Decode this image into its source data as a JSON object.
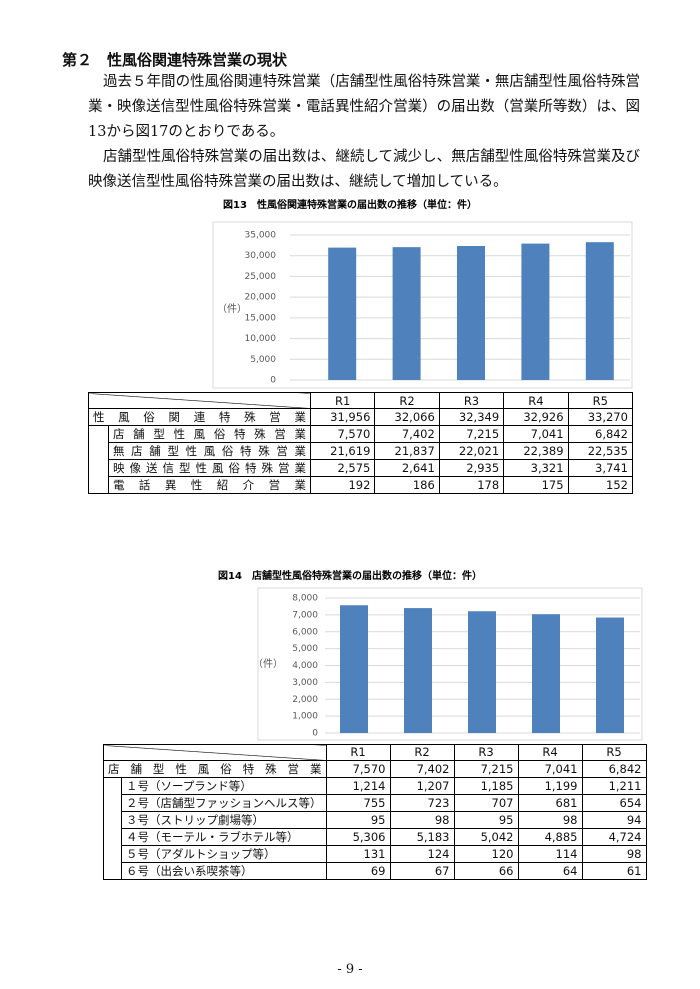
{
  "heading": "第２　性風俗関連特殊営業の現状",
  "paragraphs": [
    [
      "過去５年間の性風俗関連特殊営業（店舗型性風俗特殊営業・無店舗型性風俗特殊営",
      "業・映像送信型性風俗特殊営業・電話異性紹介営業）の届出数（営業所等数）は、図",
      "13から図17のとおりである。"
    ],
    [
      "店舗型性風俗特殊営業の届出数は、継続して減少し、無店舗型性風俗特殊営業及び",
      "映像送信型性風俗特殊営業の届出数は、継続して増加している。"
    ]
  ],
  "chart_data": [
    {
      "type": "bar",
      "title": "図13　性風俗関連特殊営業の届出数の推移（単位：件）",
      "y_label": "（件）",
      "categories": [
        "R1",
        "R2",
        "R3",
        "R4",
        "R5"
      ],
      "values": [
        31956,
        32066,
        32349,
        32926,
        33270
      ],
      "color": "#4f81bd",
      "ylim": [
        0,
        35000
      ],
      "grid": true,
      "yticks": [
        0,
        {
          "value": 5000,
          "label": "5,000"
        },
        {
          "value": 10000,
          "label": "10,000"
        },
        {
          "value": 15000,
          "label": "15,000"
        },
        {
          "value": 20000,
          "label": "20,000"
        },
        {
          "value": 25000,
          "label": "25,000"
        },
        {
          "value": 30000,
          "label": "30,000"
        },
        {
          "value": 35000,
          "label": "35,000"
        }
      ]
    },
    {
      "type": "bar",
      "title": "図14　店舗型性風俗特殊営業の届出数の推移（単位：件）",
      "y_label": "（件）",
      "categories": [
        "R1",
        "R2",
        "R3",
        "R4",
        "R5"
      ],
      "values": [
        7570,
        7402,
        7215,
        7041,
        6842
      ],
      "color": "#4f81bd",
      "ylim": [
        0,
        8000
      ],
      "grid": true,
      "yticks": [
        0,
        {
          "value": 1000,
          "label": "1,000"
        },
        {
          "value": 2000,
          "label": "2,000"
        },
        {
          "value": 3000,
          "label": "3,000"
        },
        {
          "value": 4000,
          "label": "4,000"
        },
        {
          "value": 5000,
          "label": "5,000"
        },
        {
          "value": 6000,
          "label": "6,000"
        },
        {
          "value": 7000,
          "label": "7,000"
        },
        {
          "value": 8000,
          "label": "8,000"
        }
      ]
    }
  ],
  "tables": [
    {
      "rows": [
        {
          "label": "性風俗関連特殊営業",
          "cells": [
            "31,956",
            "32,066",
            "32,349",
            "32,926",
            "33,270"
          ]
        },
        {
          "label": "店舗型性風俗特殊営業",
          "cells": [
            "7,570",
            "7,402",
            "7,215",
            "7,041",
            "6,842"
          ]
        },
        {
          "label": "無店舗型性風俗特殊営業",
          "cells": [
            "21,619",
            "21,837",
            "22,021",
            "22,389",
            "22,535"
          ]
        },
        {
          "label": "映像送信型性風俗特殊営業",
          "cells": [
            "2,575",
            "2,641",
            "2,935",
            "3,321",
            "3,741"
          ]
        },
        {
          "label": "電話異性紹介営業",
          "cells": [
            "192",
            "186",
            "178",
            "175",
            "152"
          ]
        }
      ]
    },
    {
      "rows": [
        {
          "label": "店舗型性風俗特殊営業",
          "cells": [
            "7,570",
            "7,402",
            "7,215",
            "7,041",
            "6,842"
          ]
        },
        {
          "label": "１号（ソープランド等）",
          "cells": [
            "1,214",
            "1,207",
            "1,185",
            "1,199",
            "1,211"
          ]
        },
        {
          "label": "２号（店舗型ファッションヘルス等）",
          "cells": [
            "755",
            "723",
            "707",
            "681",
            "654"
          ]
        },
        {
          "label": "３号（ストリップ劇場等）",
          "cells": [
            "95",
            "98",
            "95",
            "98",
            "94"
          ]
        },
        {
          "label": "４号（モーテル・ラブホテル等）",
          "cells": [
            "5,306",
            "5,183",
            "5,042",
            "4,885",
            "4,724"
          ]
        },
        {
          "label": "５号（アダルトショップ等）",
          "cells": [
            "131",
            "124",
            "120",
            "114",
            "98"
          ]
        },
        {
          "label": "６号（出会い系喫茶等）",
          "cells": [
            "69",
            "67",
            "66",
            "64",
            "61"
          ]
        }
      ]
    }
  ],
  "footer": "- 9 -"
}
